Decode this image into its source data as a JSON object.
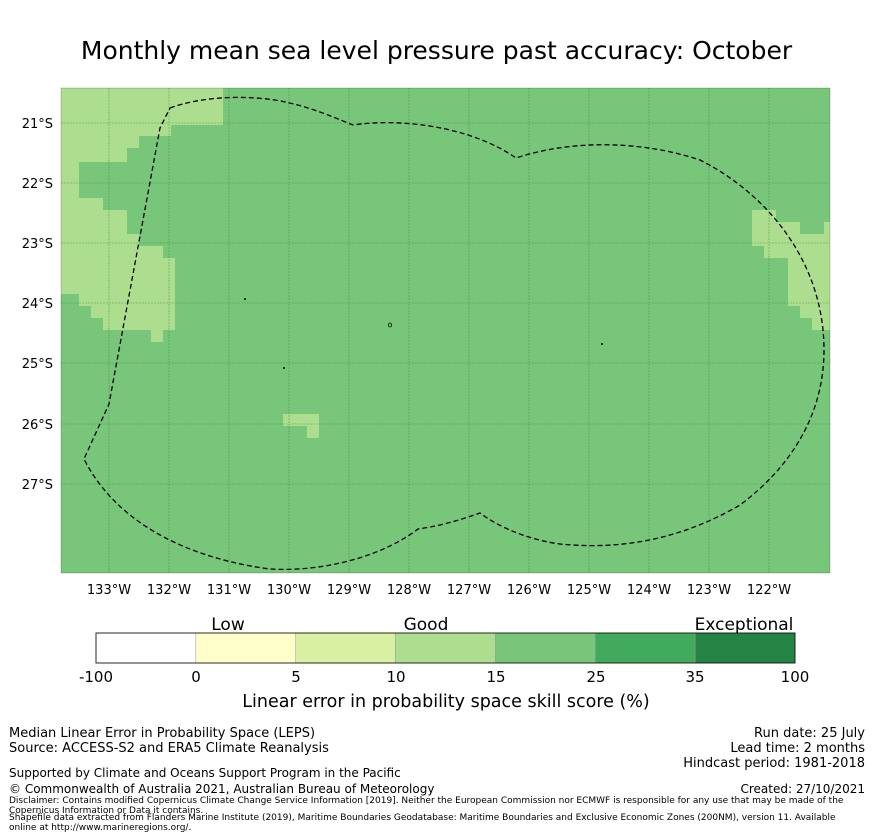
{
  "title": "Monthly mean sea level pressure past accuracy: October",
  "map": {
    "lat_labels": [
      "21°S",
      "22°S",
      "23°S",
      "24°S",
      "25°S",
      "26°S",
      "27°S"
    ],
    "lon_labels": [
      "133°W",
      "132°W",
      "131°W",
      "130°W",
      "129°W",
      "128°W",
      "127°W",
      "126°W",
      "125°W",
      "124°W",
      "123°W",
      "122°W"
    ],
    "colors": {
      "base": "#78c679",
      "light": "#addd8e"
    }
  },
  "colorbar": {
    "categories": [
      "Low",
      "Good",
      "Exceptional"
    ],
    "ticks": [
      "-100",
      "0",
      "5",
      "10",
      "15",
      "25",
      "35",
      "100"
    ],
    "colors": [
      "#ffffff",
      "#ffffcc",
      "#d9f0a3",
      "#addd8e",
      "#78c679",
      "#41ab5d",
      "#238443"
    ],
    "label": "Linear error in probability space skill score (%)"
  },
  "footer": {
    "line1": "Median Linear Error in Probability Space (LEPS)",
    "line2": "Source: ACCESS-S2 and ERA5 Climate Reanalysis",
    "support": "Supported by Climate and Oceans Support Program in the Pacific",
    "copyright": "© Commonwealth of Australia 2021, Australian Bureau of Meteorology",
    "disclaimer1": "Disclaimer: Contains modified Copernicus Climate Change Service Information [2019]. Neither the European Commission nor ECMWF is responsible for any use that may be made of the",
    "disclaimer2": "Copernicus Information or Data it contains.",
    "shapefile1": "Shapefile data extracted from Flanders Marine Institute (2019), Maritime Boundaries Geodatabase: Maritime Boundaries and Exclusive Economic Zones (200NM), version 11. Available",
    "shapefile2": "online at http://www.marineregions.org/.",
    "run_date": "Run date: 25 July",
    "lead_time": "Lead time: 2 months",
    "hindcast": "Hindcast period: 1981-2018",
    "created": "Created: 27/10/2021"
  }
}
